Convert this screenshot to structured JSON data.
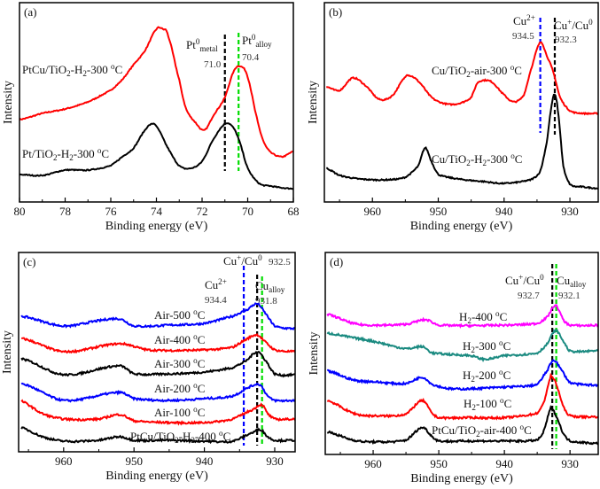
{
  "chart_data": [
    {
      "type": "line",
      "panel_label": "(a)",
      "xlabel": "Binding energy (eV)",
      "ylabel": "Intensity",
      "xlim": [
        80,
        68
      ],
      "ylim": [
        0,
        225
      ],
      "xticks": [
        80,
        78,
        76,
        74,
        72,
        70,
        68
      ],
      "yticks_shown": false,
      "grid": false,
      "series": [
        {
          "name": [
            [
              "PtCu/TiO"
            ],
            [
              "2",
              "sub"
            ],
            [
              "-H"
            ],
            [
              "2",
              "sub"
            ],
            [
              "-300 "
            ],
            [
              "o",
              "sup"
            ],
            [
              "C"
            ]
          ],
          "color": "#ff0000",
          "x": [
            80,
            79,
            78,
            77,
            76,
            75.5,
            75,
            74.5,
            74,
            73.7,
            73.5,
            73,
            72.7,
            72.3,
            71.9,
            71.5,
            71,
            70.6,
            70.3,
            70,
            69.6,
            69.3,
            69,
            68.5,
            68
          ],
          "y": [
            93,
            100,
            105,
            113,
            126,
            138,
            155,
            171,
            195,
            195,
            188,
            138,
            105,
            90,
            81,
            98,
            118,
            148,
            153,
            141,
            95,
            68,
            56,
            51,
            57
          ]
        },
        {
          "name": [
            [
              "Pt/TiO"
            ],
            [
              "2",
              "sub"
            ],
            [
              "-H"
            ],
            [
              "2",
              "sub"
            ],
            [
              "-300 "
            ],
            [
              "o",
              "sup"
            ],
            [
              "C"
            ]
          ],
          "color": "#000000",
          "x": [
            80,
            79,
            78,
            77,
            76,
            75.5,
            75,
            74.5,
            74.2,
            74,
            73.5,
            73,
            72.5,
            72,
            71.5,
            71,
            70.7,
            70.4,
            70,
            69.5,
            69,
            68.5,
            68
          ],
          "y": [
            31,
            30,
            36,
            36,
            41,
            51,
            61,
            81,
            88,
            85,
            61,
            41,
            38,
            46,
            71,
            88,
            86,
            71,
            38,
            21,
            18,
            16,
            15
          ]
        }
      ],
      "reference_lines": [
        {
          "x": 71.0,
          "color": "#000000",
          "name": [
            [
              "Pt"
            ],
            [
              "0",
              "sup"
            ],
            [
              "metal",
              "sub"
            ]
          ],
          "value": "71.0"
        },
        {
          "x": 70.4,
          "color": "#00dd00",
          "name": [
            [
              "Pt"
            ],
            [
              "0",
              "sup"
            ],
            [
              "alloy",
              "sub"
            ]
          ],
          "value": "70.4"
        }
      ]
    },
    {
      "type": "line",
      "panel_label": "(b)",
      "xlabel": "Binding energy (eV)",
      "ylabel": "Intensity",
      "xlim": [
        967.3,
        925.7
      ],
      "ylim": [
        0,
        225
      ],
      "xticks": [
        960,
        950,
        940,
        930
      ],
      "yticks_shown": false,
      "grid": false,
      "series": [
        {
          "name": [
            [
              "Cu/TiO"
            ],
            [
              "2",
              "sub"
            ],
            [
              "-air-300 "
            ],
            [
              "o",
              "sup"
            ],
            [
              "C"
            ]
          ],
          "color": "#ff0000",
          "x": [
            967,
            965,
            963,
            961,
            959,
            957,
            955,
            954.5,
            953,
            951,
            949,
            947,
            945,
            944,
            942,
            940,
            938.5,
            937,
            936,
            934.5,
            933.5,
            932.5,
            931.5,
            930,
            928,
            925
          ],
          "y": [
            130,
            126,
            140,
            131,
            116,
            120,
            141,
            143,
            136,
            118,
            111,
            111,
            118,
            135,
            136,
            121,
            113,
            121,
            148,
            180,
            165,
            146,
            118,
            103,
            100,
            100
          ]
        },
        {
          "name": [
            [
              "Cu/TiO"
            ],
            [
              "2",
              "sub"
            ],
            [
              "-H"
            ],
            [
              "2",
              "sub"
            ],
            [
              "-300 "
            ],
            [
              "o",
              "sup"
            ],
            [
              "C"
            ]
          ],
          "color": "#000000",
          "x": [
            967,
            965,
            962,
            958,
            955,
            953,
            952,
            951,
            950,
            947,
            943,
            940,
            936,
            934.5,
            933.5,
            932.8,
            932.3,
            931.8,
            931,
            930,
            928,
            925
          ],
          "y": [
            38,
            30,
            26,
            25,
            28,
            41,
            61,
            45,
            31,
            26,
            23,
            21,
            25,
            35,
            68,
            108,
            121,
            101,
            41,
            20,
            17,
            15
          ]
        }
      ],
      "reference_lines": [
        {
          "x": 934.5,
          "color": "#0000ff",
          "name": [
            [
              "Cu"
            ],
            [
              "2+",
              "sup"
            ]
          ],
          "value": "934.5"
        },
        {
          "x": 932.3,
          "color": "#000000",
          "name": [
            [
              "Cu"
            ],
            [
              "+",
              "sup"
            ],
            [
              "/Cu"
            ],
            [
              "0",
              "sup"
            ]
          ],
          "value": "932.3"
        }
      ]
    },
    {
      "type": "line",
      "panel_label": "(c)",
      "xlabel": "Binding energy (eV)",
      "ylabel": "Intensity",
      "xlim": [
        966.4,
        927.1
      ],
      "ylim": [
        0,
        225
      ],
      "xticks": [
        960,
        950,
        940,
        930
      ],
      "yticks_shown": false,
      "grid": false,
      "series": [
        {
          "name": [
            [
              "Air-500 "
            ],
            [
              "o",
              "sup"
            ],
            [
              "C"
            ]
          ],
          "color": "#0000ff",
          "x": [
            966,
            960,
            955,
            952,
            950,
            945,
            940,
            936,
            934,
            932.5,
            931.5,
            930,
            927
          ],
          "y": [
            153,
            142,
            148,
            150,
            142,
            143,
            145,
            153,
            160,
            167,
            158,
            142,
            139
          ]
        },
        {
          "name": [
            [
              "Air-400 "
            ],
            [
              "o",
              "sup"
            ],
            [
              "C"
            ]
          ],
          "color": "#ff0000",
          "x": [
            966,
            960,
            952,
            948,
            940,
            936,
            934,
            932.5,
            931.5,
            930,
            927
          ],
          "y": [
            128,
            113,
            122,
            115,
            115,
            118,
            127,
            132,
            125,
            115,
            113
          ]
        },
        {
          "name": [
            [
              "Air-300 "
            ],
            [
              "o",
              "sup"
            ],
            [
              "C"
            ]
          ],
          "color": "#000000",
          "x": [
            966,
            960,
            952,
            950,
            945,
            940,
            936,
            934,
            932.5,
            931.5,
            930,
            927
          ],
          "y": [
            105,
            87,
            97,
            88,
            88,
            90,
            95,
            103,
            113,
            105,
            88,
            87
          ]
        },
        {
          "name": [
            [
              "Air-200 "
            ],
            [
              "o",
              "sup"
            ],
            [
              "C"
            ]
          ],
          "color": "#0000ff",
          "x": [
            966,
            960,
            952,
            950,
            945,
            940,
            936,
            933,
            932,
            931,
            930,
            927
          ],
          "y": [
            77,
            58,
            67,
            60,
            58,
            60,
            63,
            75,
            75,
            63,
            58,
            58
          ]
        },
        {
          "name": [
            [
              "Air-100 "
            ],
            [
              "o",
              "sup"
            ],
            [
              "C"
            ]
          ],
          "color": "#ff0000",
          "x": [
            966,
            963,
            960,
            955,
            952,
            950,
            945,
            940,
            936,
            933,
            931.8,
            931,
            930,
            927
          ],
          "y": [
            57,
            43,
            37,
            37,
            42,
            35,
            33,
            33,
            37,
            48,
            53,
            43,
            37,
            37
          ]
        },
        {
          "name": [
            [
              "PtCu/TiO"
            ],
            [
              "2",
              "sub"
            ],
            [
              "-H"
            ],
            [
              "2",
              "sub"
            ],
            [
              "-400 "
            ],
            [
              "o",
              "sup"
            ],
            [
              "C"
            ]
          ],
          "color": "#000000",
          "x": [
            966,
            963,
            960,
            955,
            952,
            950,
            945,
            940,
            936,
            933,
            932,
            931,
            930,
            927
          ],
          "y": [
            27,
            17,
            12,
            13,
            17,
            13,
            13,
            12,
            12,
            22,
            25,
            17,
            13,
            13
          ]
        }
      ],
      "reference_lines": [
        {
          "x": 934.4,
          "color": "#0000ff",
          "name": [
            [
              "Cu"
            ],
            [
              "2+",
              "sup"
            ]
          ],
          "value": "934.4"
        },
        {
          "x": 932.5,
          "color": "#000000",
          "name": [
            [
              "Cu"
            ],
            [
              "+",
              "sup"
            ],
            [
              "/Cu"
            ],
            [
              "0",
              "sup"
            ]
          ],
          "value": "932.5"
        },
        {
          "x": 931.8,
          "color": "#00dd00",
          "name": [
            [
              "Cu"
            ],
            [
              "alloy",
              "sub"
            ]
          ],
          "value": "931.8"
        }
      ]
    },
    {
      "type": "line",
      "panel_label": "(d)",
      "xlabel": "Binding energy (eV)",
      "ylabel": "Intensity",
      "xlim": [
        967.3,
        925.7
      ],
      "ylim": [
        0,
        225
      ],
      "xticks": [
        960,
        950,
        940,
        930
      ],
      "yticks_shown": false,
      "grid": false,
      "series": [
        {
          "name": [
            [
              "H"
            ],
            [
              "2",
              "sub"
            ],
            [
              "-400 "
            ],
            [
              "o",
              "sup"
            ],
            [
              "C"
            ]
          ],
          "color": "#ff00ff",
          "x": [
            967,
            963,
            960,
            955,
            952,
            950,
            940,
            935,
            933.5,
            932.2,
            931,
            930,
            925
          ],
          "y": [
            156,
            146,
            144,
            145,
            150,
            144,
            144,
            146,
            153,
            166,
            150,
            144,
            144
          ]
        },
        {
          "name": [
            [
              "H"
            ],
            [
              "2",
              "sub"
            ],
            [
              "-300 "
            ],
            [
              "o",
              "sup"
            ],
            [
              "C"
            ]
          ],
          "color": "#1a8a80",
          "x": [
            967,
            963,
            960,
            955,
            952.5,
            951,
            945,
            943,
            940,
            935,
            933.5,
            932.2,
            931,
            930,
            925
          ],
          "y": [
            135,
            130,
            126,
            118,
            120,
            113,
            110,
            106,
            110,
            113,
            123,
            138,
            126,
            115,
            116
          ]
        },
        {
          "name": [
            [
              "H"
            ],
            [
              "2",
              "sub"
            ],
            [
              "-200 "
            ],
            [
              "o",
              "sup"
            ],
            [
              "C"
            ]
          ],
          "color": "#0000ff",
          "x": [
            967,
            963,
            960,
            955,
            952.5,
            951,
            948,
            940,
            935,
            933.5,
            932.5,
            931.5,
            930,
            925
          ],
          "y": [
            93,
            83,
            81,
            79,
            86,
            78,
            73,
            75,
            78,
            93,
            105,
            96,
            80,
            77
          ]
        },
        {
          "name": [
            [
              "H"
            ],
            [
              "2",
              "sub"
            ],
            [
              "-100 "
            ],
            [
              "o",
              "sup"
            ],
            [
              "C"
            ]
          ],
          "color": "#ff0000",
          "x": [
            967,
            963,
            960,
            955,
            952.5,
            951,
            950,
            945,
            940,
            935,
            934,
            933,
            932.7,
            932,
            931,
            930,
            925
          ],
          "y": [
            60,
            46,
            43,
            45,
            60,
            46,
            41,
            41,
            41,
            46,
            58,
            85,
            86,
            76,
            53,
            43,
            42
          ]
        },
        {
          "name": [
            [
              "PtCu/TiO"
            ],
            [
              "2",
              "sub"
            ],
            [
              "-air-400 "
            ],
            [
              "o",
              "sup"
            ],
            [
              "C"
            ]
          ],
          "color": "#000000",
          "x": [
            967,
            963,
            960,
            955,
            952.5,
            951,
            950,
            945,
            940,
            935,
            934,
            933,
            932.7,
            932,
            931,
            930,
            925
          ],
          "y": [
            25,
            16,
            14,
            16,
            30,
            20,
            15,
            15,
            15,
            16,
            26,
            50,
            50,
            41,
            23,
            15,
            12
          ]
        }
      ],
      "reference_lines": [
        {
          "x": 932.7,
          "color": "#000000",
          "name": [
            [
              "Cu"
            ],
            [
              "+",
              "sup"
            ],
            [
              "/Cu"
            ],
            [
              "0",
              "sup"
            ]
          ],
          "value": "932.7"
        },
        {
          "x": 932.1,
          "color": "#00dd00",
          "name": [
            [
              "Cu"
            ],
            [
              "alloy",
              "sub"
            ]
          ],
          "value": "932.1"
        }
      ]
    }
  ]
}
